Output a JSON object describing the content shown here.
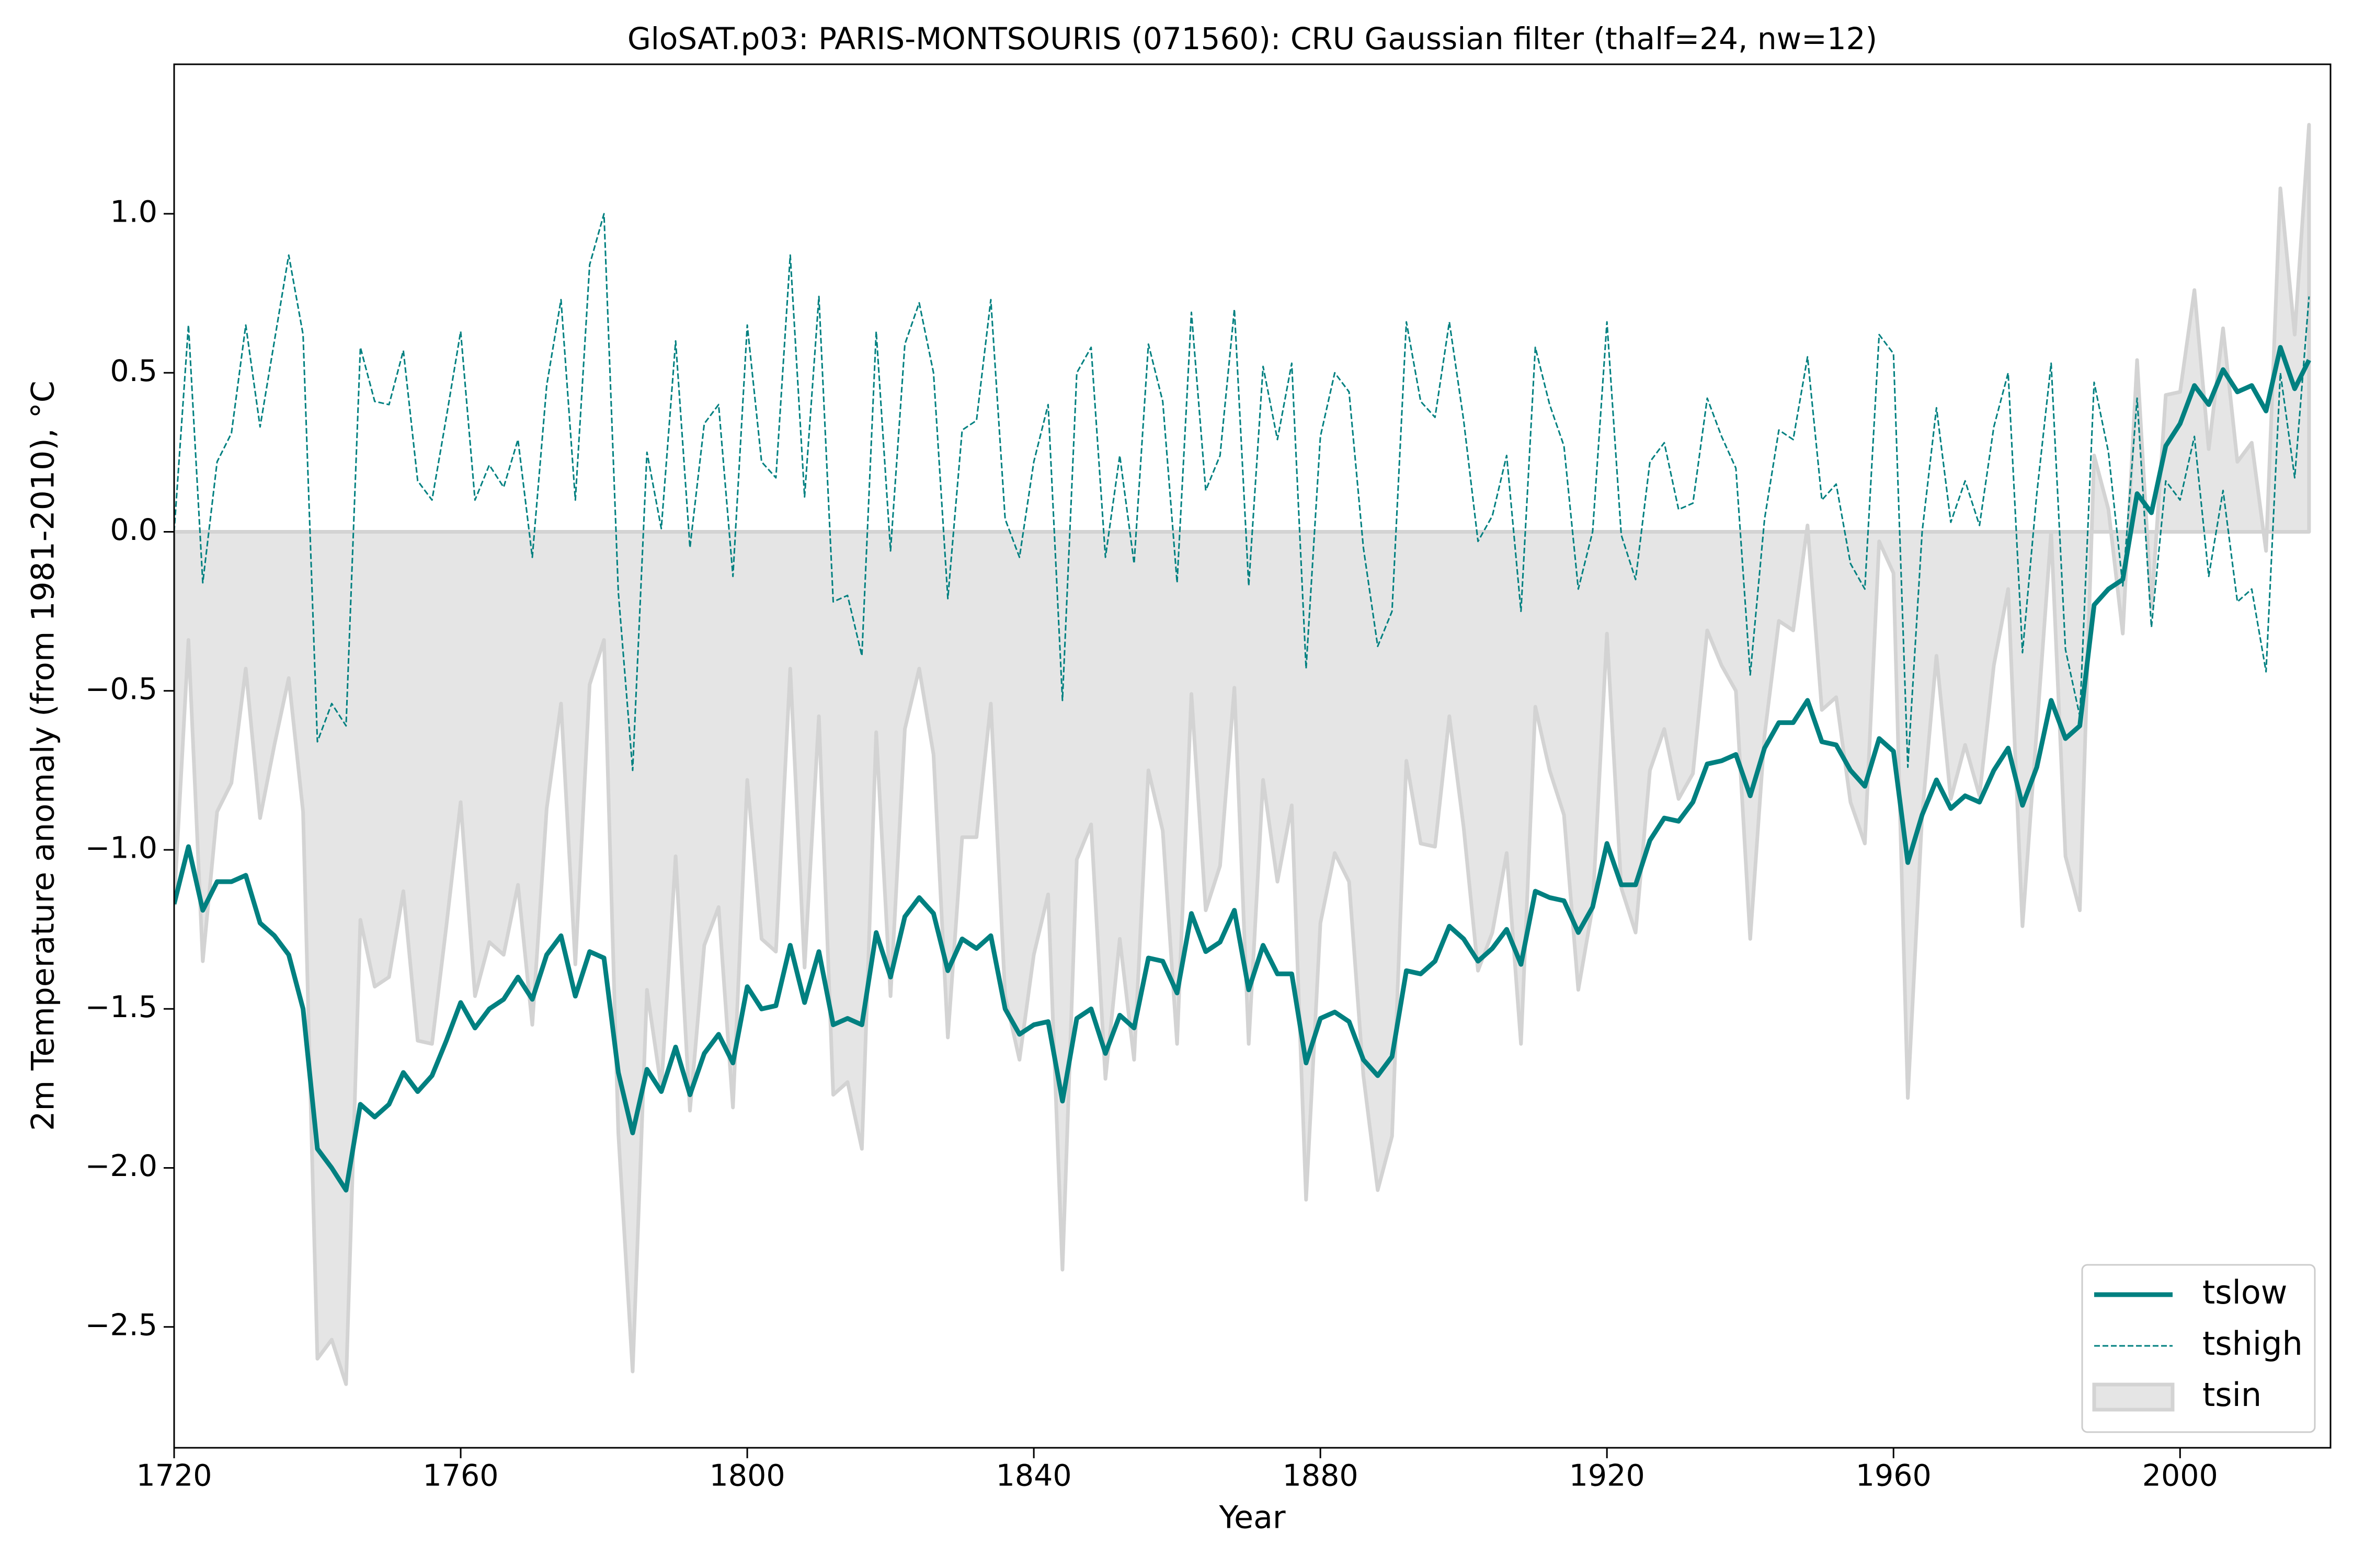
{
  "chart_data": {
    "type": "line",
    "title": "GloSAT.p03: PARIS-MONTSOURIS (071560): CRU Gaussian filter (thalf=24, nw=12)",
    "x_label": "Year",
    "y_label": "2m Temperature anomaly (from 1981-2010), °C",
    "x": [
      1720,
      1722,
      1724,
      1726,
      1728,
      1730,
      1732,
      1734,
      1736,
      1738,
      1740,
      1742,
      1744,
      1746,
      1748,
      1750,
      1752,
      1754,
      1756,
      1758,
      1760,
      1762,
      1764,
      1766,
      1768,
      1770,
      1772,
      1774,
      1776,
      1778,
      1780,
      1782,
      1784,
      1786,
      1788,
      1790,
      1792,
      1794,
      1796,
      1798,
      1800,
      1802,
      1804,
      1806,
      1808,
      1810,
      1812,
      1814,
      1816,
      1818,
      1820,
      1822,
      1824,
      1826,
      1828,
      1830,
      1832,
      1834,
      1836,
      1838,
      1840,
      1842,
      1844,
      1846,
      1848,
      1850,
      1852,
      1854,
      1856,
      1858,
      1860,
      1862,
      1864,
      1866,
      1868,
      1870,
      1872,
      1874,
      1876,
      1878,
      1880,
      1882,
      1884,
      1886,
      1888,
      1890,
      1892,
      1894,
      1896,
      1898,
      1900,
      1902,
      1904,
      1906,
      1908,
      1910,
      1912,
      1914,
      1916,
      1918,
      1920,
      1922,
      1924,
      1926,
      1928,
      1930,
      1932,
      1934,
      1936,
      1938,
      1940,
      1942,
      1944,
      1946,
      1948,
      1950,
      1952,
      1954,
      1956,
      1958,
      1960,
      1962,
      1964,
      1966,
      1968,
      1970,
      1972,
      1974,
      1976,
      1978,
      1980,
      1982,
      1984,
      1986,
      1988,
      1990,
      1992,
      1994,
      1996,
      1998,
      2000,
      2002,
      2004,
      2006,
      2008,
      2010,
      2012,
      2014,
      2016,
      2018
    ],
    "series": [
      {
        "name": "tsin",
        "color": "#d3d3d3",
        "fill": true,
        "style": "area",
        "values": [
          -1.17,
          -0.34,
          -1.35,
          -0.88,
          -0.79,
          -0.43,
          -0.9,
          -0.67,
          -0.46,
          -0.88,
          -2.6,
          -2.54,
          -2.68,
          -1.22,
          -1.43,
          -1.4,
          -1.13,
          -1.6,
          -1.61,
          -1.24,
          -0.85,
          -1.46,
          -1.29,
          -1.33,
          -1.11,
          -1.55,
          -0.87,
          -0.54,
          -1.36,
          -0.48,
          -0.34,
          -1.89,
          -2.64,
          -1.44,
          -1.75,
          -1.02,
          -1.82,
          -1.3,
          -1.18,
          -1.81,
          -0.78,
          -1.28,
          -1.32,
          -0.43,
          -1.37,
          -0.58,
          -1.77,
          -1.73,
          -1.94,
          -0.63,
          -1.46,
          -0.62,
          -0.43,
          -0.7,
          -1.59,
          -0.96,
          -0.96,
          -0.54,
          -1.46,
          -1.66,
          -1.33,
          -1.14,
          -2.32,
          -1.03,
          -0.92,
          -1.72,
          -1.28,
          -1.66,
          -0.75,
          -0.94,
          -1.61,
          -0.51,
          -1.19,
          -1.05,
          -0.49,
          -1.61,
          -0.78,
          -1.1,
          -0.86,
          -2.1,
          -1.23,
          -1.01,
          -1.1,
          -1.71,
          -2.07,
          -1.9,
          -0.72,
          -0.98,
          -0.99,
          -0.58,
          -0.93,
          -1.38,
          -1.26,
          -1.01,
          -1.61,
          -0.55,
          -0.75,
          -0.89,
          -1.44,
          -1.18,
          -0.32,
          -1.12,
          -1.26,
          -0.75,
          -0.62,
          -0.84,
          -0.76,
          -0.31,
          -0.42,
          -0.5,
          -1.28,
          -0.64,
          -0.28,
          -0.31,
          0.02,
          -0.56,
          -0.52,
          -0.85,
          -0.98,
          -0.03,
          -0.13,
          -1.78,
          -0.89,
          -0.39,
          -0.84,
          -0.67,
          -0.83,
          -0.42,
          -0.18,
          -1.24,
          -0.62,
          0.0,
          -1.02,
          -1.19,
          0.24,
          0.07,
          -0.32,
          0.54,
          -0.24,
          0.43,
          0.44,
          0.76,
          0.26,
          0.64,
          0.22,
          0.28,
          -0.06,
          1.08,
          0.62,
          1.28
        ]
      },
      {
        "name": "tshigh",
        "color": "#008080",
        "style": "dashed",
        "values": [
          0.0,
          0.65,
          -0.16,
          0.22,
          0.31,
          0.65,
          0.33,
          0.6,
          0.87,
          0.62,
          -0.66,
          -0.54,
          -0.61,
          0.58,
          0.41,
          0.4,
          0.57,
          0.16,
          0.1,
          0.36,
          0.63,
          0.1,
          0.21,
          0.14,
          0.29,
          -0.08,
          0.46,
          0.73,
          0.1,
          0.84,
          1.0,
          -0.19,
          -0.75,
          0.25,
          0.01,
          0.6,
          -0.05,
          0.34,
          0.4,
          -0.14,
          0.65,
          0.22,
          0.17,
          0.87,
          0.11,
          0.74,
          -0.22,
          -0.2,
          -0.39,
          0.63,
          -0.06,
          0.59,
          0.72,
          0.5,
          -0.21,
          0.32,
          0.35,
          0.73,
          0.04,
          -0.08,
          0.22,
          0.4,
          -0.53,
          0.5,
          0.58,
          -0.08,
          0.24,
          -0.1,
          0.59,
          0.41,
          -0.16,
          0.69,
          0.13,
          0.24,
          0.7,
          -0.17,
          0.52,
          0.29,
          0.53,
          -0.43,
          0.3,
          0.5,
          0.44,
          -0.05,
          -0.36,
          -0.25,
          0.66,
          0.41,
          0.36,
          0.66,
          0.35,
          -0.03,
          0.05,
          0.24,
          -0.25,
          0.58,
          0.4,
          0.27,
          -0.18,
          0.0,
          0.66,
          -0.01,
          -0.15,
          0.22,
          0.28,
          0.07,
          0.09,
          0.42,
          0.3,
          0.2,
          -0.45,
          0.04,
          0.32,
          0.29,
          0.55,
          0.1,
          0.15,
          -0.1,
          -0.18,
          0.62,
          0.56,
          -0.74,
          0.0,
          0.39,
          0.03,
          0.16,
          0.02,
          0.33,
          0.5,
          -0.38,
          0.12,
          0.53,
          -0.37,
          -0.58,
          0.47,
          0.25,
          -0.17,
          0.42,
          -0.3,
          0.16,
          0.1,
          0.3,
          -0.14,
          0.13,
          -0.22,
          -0.18,
          -0.44,
          0.5,
          0.17,
          0.74
        ]
      },
      {
        "name": "tslow",
        "color": "#008080",
        "style": "solid",
        "values": [
          -1.17,
          -0.99,
          -1.19,
          -1.1,
          -1.1,
          -1.08,
          -1.23,
          -1.27,
          -1.33,
          -1.5,
          -1.94,
          -2.0,
          -2.07,
          -1.8,
          -1.84,
          -1.8,
          -1.7,
          -1.76,
          -1.71,
          -1.6,
          -1.48,
          -1.56,
          -1.5,
          -1.47,
          -1.4,
          -1.47,
          -1.33,
          -1.27,
          -1.46,
          -1.32,
          -1.34,
          -1.7,
          -1.89,
          -1.69,
          -1.76,
          -1.62,
          -1.77,
          -1.64,
          -1.58,
          -1.67,
          -1.43,
          -1.5,
          -1.49,
          -1.3,
          -1.48,
          -1.32,
          -1.55,
          -1.53,
          -1.55,
          -1.26,
          -1.4,
          -1.21,
          -1.15,
          -1.2,
          -1.38,
          -1.28,
          -1.31,
          -1.27,
          -1.5,
          -1.58,
          -1.55,
          -1.54,
          -1.79,
          -1.53,
          -1.5,
          -1.64,
          -1.52,
          -1.56,
          -1.34,
          -1.35,
          -1.45,
          -1.2,
          -1.32,
          -1.29,
          -1.19,
          -1.44,
          -1.3,
          -1.39,
          -1.39,
          -1.67,
          -1.53,
          -1.51,
          -1.54,
          -1.66,
          -1.71,
          -1.65,
          -1.38,
          -1.39,
          -1.35,
          -1.24,
          -1.28,
          -1.35,
          -1.31,
          -1.25,
          -1.36,
          -1.13,
          -1.15,
          -1.16,
          -1.26,
          -1.18,
          -0.98,
          -1.11,
          -1.11,
          -0.97,
          -0.9,
          -0.91,
          -0.85,
          -0.73,
          -0.72,
          -0.7,
          -0.83,
          -0.68,
          -0.6,
          -0.6,
          -0.53,
          -0.66,
          -0.67,
          -0.75,
          -0.8,
          -0.65,
          -0.69,
          -1.04,
          -0.89,
          -0.78,
          -0.87,
          -0.83,
          -0.85,
          -0.75,
          -0.68,
          -0.86,
          -0.74,
          -0.53,
          -0.65,
          -0.61,
          -0.23,
          -0.18,
          -0.15,
          0.12,
          0.06,
          0.27,
          0.34,
          0.46,
          0.4,
          0.51,
          0.44,
          0.46,
          0.38,
          0.58,
          0.45,
          0.54
        ]
      }
    ],
    "legend_order": [
      "tslow",
      "tshigh",
      "tsin"
    ],
    "legend": "lower right",
    "xlim": [
      1720,
      2021
    ],
    "ylim": [
      -2.88,
      1.47
    ],
    "xticks": [
      1720,
      1760,
      1800,
      1840,
      1880,
      1920,
      1960,
      2000
    ],
    "yticks": [
      {
        "value": -2.5,
        "label": "−2.5"
      },
      {
        "value": -2,
        "label": "−2.0"
      },
      {
        "value": -1.5,
        "label": "−1.5"
      },
      {
        "value": -1,
        "label": "−1.0"
      },
      {
        "value": -0.5,
        "label": "−0.5"
      },
      {
        "value": 0,
        "label": "0.0"
      },
      {
        "value": 0.5,
        "label": "0.5"
      },
      {
        "value": 1,
        "label": "1.0"
      }
    ]
  }
}
